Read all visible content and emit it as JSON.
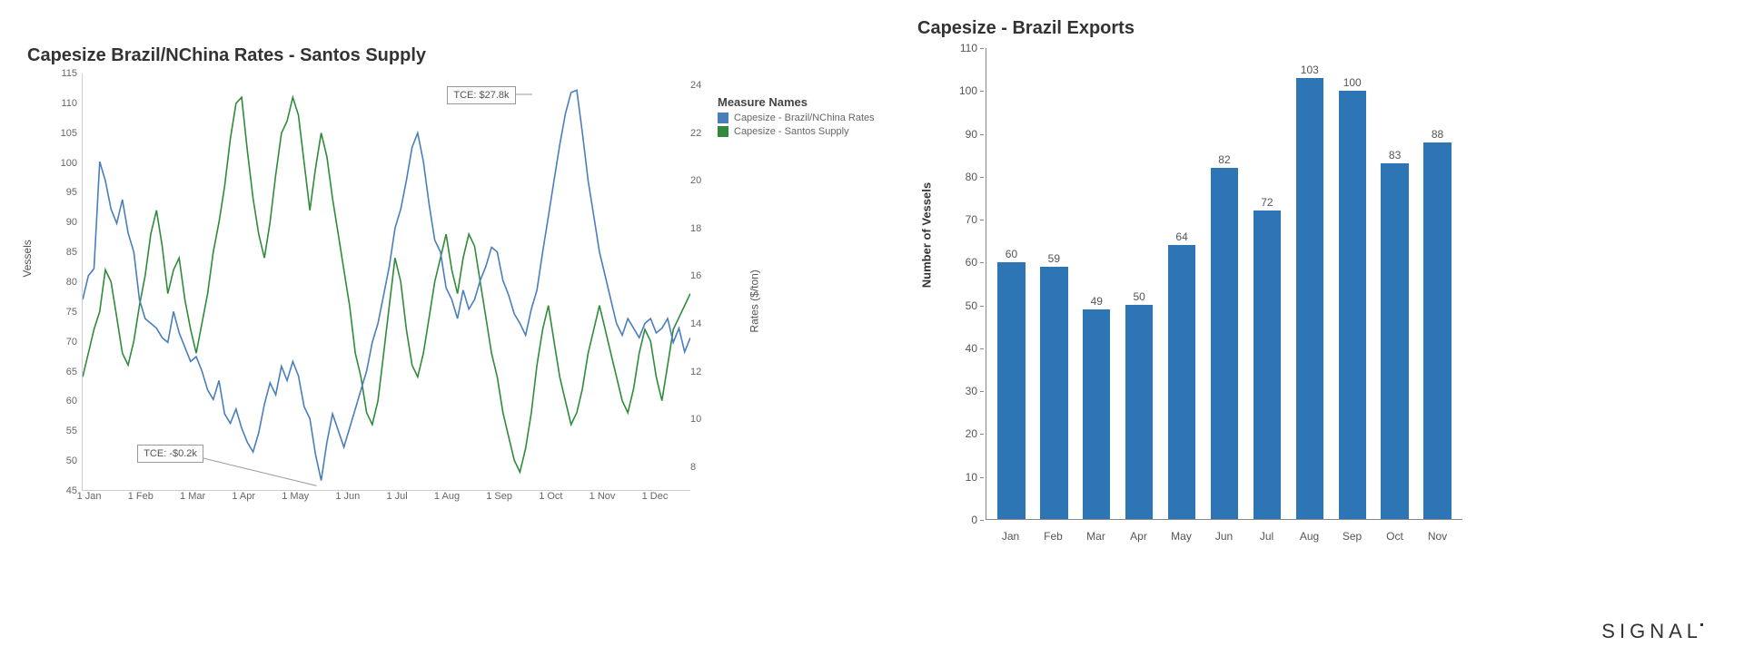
{
  "line_chart": {
    "type": "line",
    "title": "Capesize Brazil/NChina Rates - Santos Supply",
    "title_fontsize": 20,
    "background_color": "#ffffff",
    "y_left": {
      "label": "Vessels",
      "min": 45,
      "max": 115,
      "ticks": [
        45,
        50,
        55,
        60,
        65,
        70,
        75,
        80,
        85,
        90,
        95,
        100,
        105,
        110,
        115
      ],
      "label_fontsize": 12,
      "tick_fontsize": 11
    },
    "y_right": {
      "label": "Rates ($/ton)",
      "min": 7,
      "max": 24.5,
      "ticks": [
        8,
        10,
        12,
        14,
        16,
        18,
        20,
        22,
        24
      ],
      "label_fontsize": 12,
      "tick_fontsize": 11
    },
    "x": {
      "ticks": [
        "1 Jan",
        "1 Feb",
        "1 Mar",
        "1 Apr",
        "1 May",
        "1 Jun",
        "1 Jul",
        "1 Aug",
        "1 Sep",
        "1 Oct",
        "1 Nov",
        "1 Dec"
      ],
      "tick_fontsize": 11
    },
    "series_rates": {
      "name": "Capesize - Brazil/NChina Rates",
      "color": "#4a7ebb",
      "line_width": 1.4,
      "axis": "right",
      "data": [
        15.0,
        16.0,
        16.3,
        20.8,
        20.0,
        18.8,
        18.2,
        19.2,
        17.8,
        17.0,
        15.0,
        14.2,
        14.0,
        13.8,
        13.4,
        13.2,
        14.5,
        13.6,
        13.0,
        12.4,
        12.6,
        12.0,
        11.2,
        10.8,
        11.6,
        10.2,
        9.8,
        10.4,
        9.6,
        9.0,
        8.6,
        9.4,
        10.6,
        11.5,
        11.0,
        12.2,
        11.6,
        12.4,
        11.8,
        10.5,
        10.0,
        8.5,
        7.4,
        9.0,
        10.2,
        9.5,
        8.8,
        9.6,
        10.4,
        11.2,
        12.0,
        13.2,
        14.0,
        15.2,
        16.4,
        18.0,
        18.8,
        20.0,
        21.4,
        22.0,
        20.8,
        19.0,
        17.5,
        17.0,
        15.5,
        15.0,
        14.2,
        15.4,
        14.6,
        15.0,
        15.8,
        16.4,
        17.2,
        17.0,
        15.8,
        15.2,
        14.4,
        14.0,
        13.5,
        14.6,
        15.4,
        17.0,
        18.5,
        20.0,
        21.5,
        22.8,
        23.7,
        23.8,
        22.0,
        20.0,
        18.5,
        17.0,
        16.0,
        15.0,
        14.0,
        13.5,
        14.2,
        13.8,
        13.4,
        14.0,
        14.2,
        13.6,
        13.8,
        14.2,
        13.2,
        13.8,
        12.8,
        13.4
      ]
    },
    "series_supply": {
      "name": "Capesize - Santos Supply",
      "color": "#2f8b3a",
      "line_width": 1.4,
      "axis": "left",
      "data": [
        64,
        68,
        72,
        75,
        82,
        80,
        74,
        68,
        66,
        70,
        76,
        81,
        88,
        92,
        86,
        78,
        82,
        84,
        77,
        72,
        68,
        73,
        78,
        85,
        90,
        96,
        104,
        110,
        111,
        102,
        94,
        88,
        84,
        90,
        98,
        105,
        107,
        111,
        108,
        100,
        92,
        99,
        105,
        101,
        94,
        88,
        82,
        76,
        68,
        64,
        58,
        56,
        60,
        68,
        76,
        84,
        80,
        72,
        66,
        64,
        68,
        74,
        80,
        84,
        88,
        82,
        78,
        84,
        88,
        86,
        80,
        74,
        68,
        64,
        58,
        54,
        50,
        48,
        52,
        58,
        66,
        72,
        76,
        70,
        64,
        60,
        56,
        58,
        62,
        68,
        72,
        76,
        72,
        68,
        64,
        60,
        58,
        62,
        68,
        72,
        70,
        64,
        60,
        66,
        72,
        74,
        76,
        78
      ]
    },
    "annotations": [
      {
        "text": "TCE: $27.8k",
        "box_pct": {
          "x": 60,
          "y": 3
        },
        "pointer_to_pct": {
          "x": 74,
          "y": 5
        }
      },
      {
        "text": "TCE: -$0.2k",
        "box_pct": {
          "x": 9,
          "y": 89
        },
        "pointer_to_pct": {
          "x": 38.5,
          "y": 99
        }
      }
    ],
    "legend": {
      "title": "Measure Names",
      "items": [
        {
          "label": "Capesize - Brazil/NChina Rates",
          "color": "#4a7ebb"
        },
        {
          "label": "Capesize - Santos Supply",
          "color": "#2f8b3a"
        }
      ]
    }
  },
  "bar_chart": {
    "type": "bar",
    "title": "Capesize - Brazil Exports",
    "title_fontsize": 20,
    "background_color": "#ffffff",
    "bar_color": "#2e75b6",
    "bar_width": 0.78,
    "y": {
      "label": "Number of Vessels",
      "min": 0,
      "max": 110,
      "ticks": [
        0,
        10,
        20,
        30,
        40,
        50,
        60,
        70,
        80,
        90,
        100,
        110
      ],
      "label_fontsize": 13,
      "tick_fontsize": 12
    },
    "categories": [
      "Jan",
      "Feb",
      "Mar",
      "Apr",
      "May",
      "Jun",
      "Jul",
      "Aug",
      "Sep",
      "Oct",
      "Nov"
    ],
    "values": [
      60,
      59,
      49,
      50,
      64,
      82,
      72,
      103,
      100,
      83,
      88
    ],
    "value_label_fontsize": 12,
    "value_label_color": "#555555"
  },
  "brand": {
    "text": "SIGNAL",
    "fontsize": 22,
    "letter_spacing": 5,
    "color": "#333333"
  }
}
